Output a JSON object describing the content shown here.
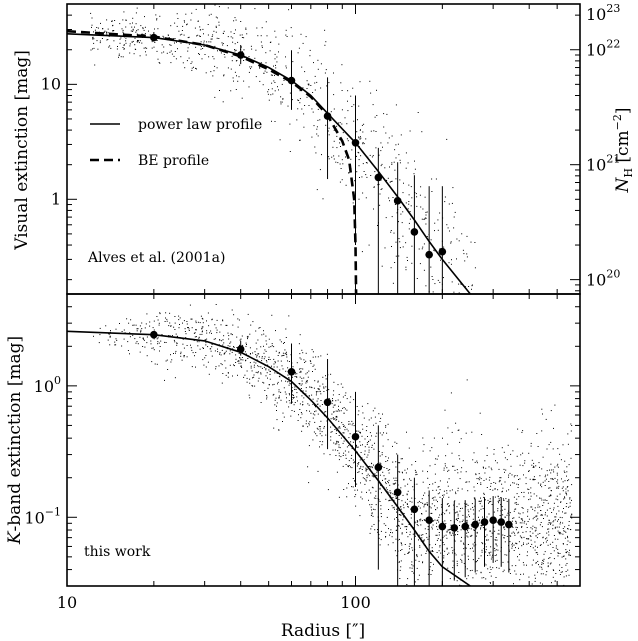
{
  "chart_data": [
    {
      "type": "scatter",
      "panel": "top",
      "ylabel": "Visual extinction [mag]",
      "ylabel_right": "N_H [cm^-2]",
      "ylabel_right_main": "N",
      "ylabel_right_sub": "H",
      "ylabel_right_unit_open": " [cm",
      "ylabel_right_exp": "−2",
      "ylabel_right_unit_close": "]",
      "x_scale": "log",
      "y_scale": "log",
      "xlim": [
        10,
        600
      ],
      "ylim": [
        0.15,
        50
      ],
      "y_ticks": [
        {
          "value": 1,
          "label": "1"
        },
        {
          "value": 10,
          "label": "10"
        }
      ],
      "y_right_ticks": [
        {
          "value": 0.2,
          "base": "10",
          "exp": "20"
        },
        {
          "value": 2,
          "base": "10",
          "exp": "21"
        },
        {
          "value": 20,
          "base": "10",
          "exp": "22"
        },
        {
          "value": 200,
          "base": "10",
          "exp": "23"
        }
      ],
      "annotation": "Alves et al. (2001a)",
      "legend": {
        "placement": "left",
        "entries": [
          {
            "label": "power law profile",
            "style": "solid"
          },
          {
            "label": "BE profile",
            "style": "dashed"
          }
        ]
      },
      "series": [
        {
          "kind": "binned",
          "x": [
            20,
            40,
            60,
            80,
            100,
            120,
            140,
            160,
            180,
            200
          ],
          "y": [
            25.5,
            18,
            10.8,
            5.3,
            3.1,
            1.55,
            0.97,
            0.52,
            0.33,
            0.35
          ],
          "err_low": [
            2,
            3,
            4.8,
            3.8,
            2.7,
            1.4,
            0.87,
            0.37,
            0.18,
            0.2
          ],
          "err_high": [
            3,
            4,
            9,
            6.2,
            4.9,
            1.25,
            1.13,
            1.1,
            0.97,
            0.95
          ]
        },
        {
          "kind": "power law model",
          "style": "solid",
          "x": [
            10,
            20,
            30,
            40,
            50,
            60,
            70,
            80,
            90,
            100,
            120,
            140,
            160,
            180,
            200,
            250
          ],
          "y": [
            27.5,
            25.5,
            22,
            18,
            14,
            10.8,
            8,
            5.6,
            4.1,
            3.1,
            1.75,
            1.05,
            0.66,
            0.43,
            0.3,
            0.15
          ]
        },
        {
          "kind": "BE model",
          "style": "dashed",
          "x": [
            10,
            20,
            30,
            40,
            50,
            60,
            70,
            80,
            90,
            95,
            99,
            100,
            100.5
          ],
          "y": [
            29,
            26,
            22,
            17.5,
            13.5,
            10.5,
            7.8,
            5.4,
            3.2,
            2.2,
            1.0,
            0.4,
            0.15
          ]
        }
      ]
    },
    {
      "type": "scatter",
      "panel": "bottom",
      "ylabel": "K-band extinction [mag]",
      "ylabel_italic": "K",
      "ylabel_rest": "-band extinction [mag]",
      "xlabel": "Radius [″]",
      "x_scale": "log",
      "y_scale": "log",
      "xlim": [
        10,
        600
      ],
      "ylim": [
        0.03,
        5
      ],
      "x_ticks": [
        {
          "value": 10,
          "label": "10"
        },
        {
          "value": 100,
          "label": "100"
        }
      ],
      "y_ticks": [
        {
          "value": 0.1,
          "base": "10",
          "exp": "−1"
        },
        {
          "value": 1,
          "base": "10",
          "exp": "0"
        }
      ],
      "annotation": "this work",
      "series": [
        {
          "kind": "binned",
          "x": [
            20,
            40,
            60,
            80,
            100,
            120,
            140,
            160,
            180,
            200,
            220,
            240,
            260,
            280,
            300,
            320,
            340
          ],
          "y": [
            2.45,
            1.9,
            1.28,
            0.75,
            0.41,
            0.24,
            0.155,
            0.115,
            0.095,
            0.085,
            0.083,
            0.085,
            0.088,
            0.092,
            0.095,
            0.092,
            0.088
          ],
          "err_low": [
            0.1,
            0.2,
            0.55,
            0.42,
            0.24,
            0.2,
            0.125,
            0.085,
            0.065,
            0.055,
            0.05,
            0.05,
            0.05,
            0.05,
            0.05,
            0.05,
            0.05
          ],
          "err_high": [
            0.15,
            0.3,
            0.82,
            0.85,
            0.49,
            0.26,
            0.145,
            0.085,
            0.065,
            0.055,
            0.05,
            0.05,
            0.05,
            0.05,
            0.05,
            0.05,
            0.05
          ]
        },
        {
          "kind": "power law model",
          "style": "solid",
          "x": [
            10,
            20,
            30,
            40,
            50,
            60,
            70,
            80,
            90,
            100,
            120,
            140,
            160,
            180,
            200,
            250
          ],
          "y": [
            2.6,
            2.45,
            2.2,
            1.8,
            1.4,
            1.08,
            0.78,
            0.57,
            0.42,
            0.32,
            0.19,
            0.12,
            0.08,
            0.055,
            0.042,
            0.03
          ]
        }
      ]
    }
  ]
}
